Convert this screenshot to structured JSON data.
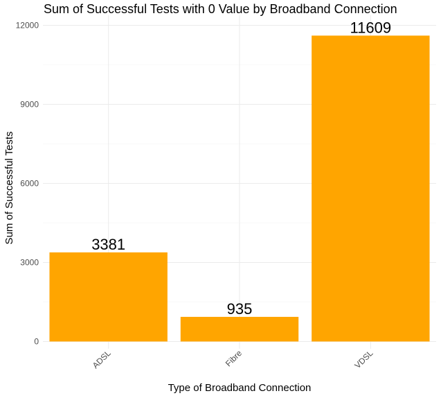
{
  "chart_data": {
    "type": "bar",
    "title": "Sum of Successful Tests with 0 Value by Broadband Connection",
    "xlabel": "Type of Broadband Connection",
    "ylabel": "Sum of Successful Tests",
    "categories": [
      "ADSL",
      "Fibre",
      "VDSL"
    ],
    "values": [
      3381,
      935,
      11609
    ],
    "data_labels": [
      "3381",
      "935",
      "11609"
    ],
    "ylim": [
      0,
      12000
    ],
    "yticks": [
      0,
      3000,
      6000,
      9000,
      12000
    ],
    "ytick_labels": [
      "0",
      "3000",
      "6000",
      "9000",
      "12000"
    ],
    "bar_color": "#FFA500",
    "grid": true,
    "legend": "none"
  }
}
